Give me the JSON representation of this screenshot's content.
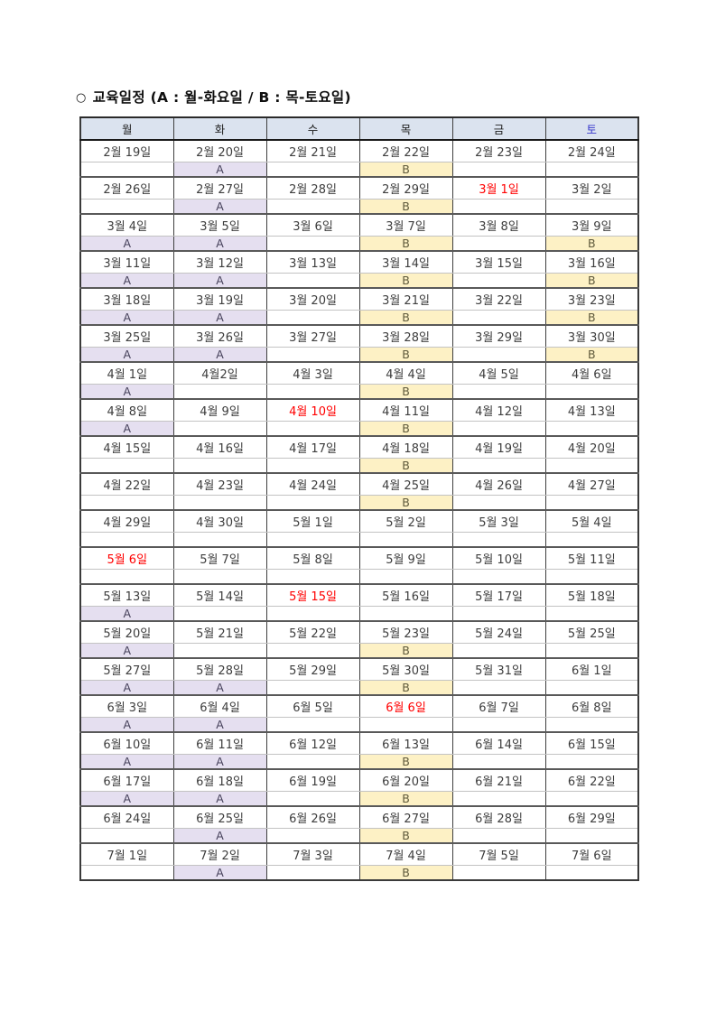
{
  "title": {
    "bullet": "○",
    "text": "교육일정 (A : 월-화요일 / B : 목-토요일)"
  },
  "legend": {
    "a_meaning": "월-화요일",
    "b_meaning": "목-토요일"
  },
  "colors": {
    "header_bg": "#dbe3ef",
    "header_fg": "#1f1f1f",
    "saturday_blue": "#3a3acc",
    "marker_a_bg": "#e5dff0",
    "marker_b_bg": "#fdf1c5",
    "holiday_red": "#ff0000",
    "border_dark": "#3a3a3a",
    "group_separator": "#595959"
  },
  "table": {
    "headers": [
      "월",
      "화",
      "수",
      "목",
      "금",
      "토"
    ],
    "saturday_index": 5,
    "weeks": [
      {
        "dates": [
          "2월 19일",
          "2월 20일",
          "2월 21일",
          "2월 22일",
          "2월 23일",
          "2월 24일"
        ],
        "markers": [
          "",
          "A",
          "",
          "B",
          "",
          ""
        ],
        "red": []
      },
      {
        "dates": [
          "2월 26일",
          "2월 27일",
          "2월 28일",
          "2월 29일",
          "3월 1일",
          "3월 2일"
        ],
        "markers": [
          "",
          "A",
          "",
          "B",
          "",
          ""
        ],
        "red": [
          4
        ]
      },
      {
        "dates": [
          "3월 4일",
          "3월 5일",
          "3월 6일",
          "3월 7일",
          "3월 8일",
          "3월 9일"
        ],
        "markers": [
          "A",
          "A",
          "",
          "B",
          "",
          "B"
        ],
        "red": []
      },
      {
        "dates": [
          "3월 11일",
          "3월 12일",
          "3월 13일",
          "3월 14일",
          "3월 15일",
          "3월 16일"
        ],
        "markers": [
          "A",
          "A",
          "",
          "B",
          "",
          "B"
        ],
        "red": []
      },
      {
        "dates": [
          "3월 18일",
          "3월 19일",
          "3월 20일",
          "3월 21일",
          "3월 22일",
          "3월 23일"
        ],
        "markers": [
          "A",
          "A",
          "",
          "B",
          "",
          "B"
        ],
        "red": []
      },
      {
        "dates": [
          "3월 25일",
          "3월 26일",
          "3월 27일",
          "3월 28일",
          "3월 29일",
          "3월 30일"
        ],
        "markers": [
          "A",
          "A",
          "",
          "B",
          "",
          "B"
        ],
        "red": []
      },
      {
        "dates": [
          "4월 1일",
          "4월2일",
          "4월 3일",
          "4월 4일",
          "4월 5일",
          "4월 6일"
        ],
        "markers": [
          "A",
          "",
          "",
          "B",
          "",
          ""
        ],
        "red": []
      },
      {
        "dates": [
          "4월 8일",
          "4월 9일",
          "4월 10일",
          "4월 11일",
          "4월 12일",
          "4월 13일"
        ],
        "markers": [
          "A",
          "",
          "",
          "B",
          "",
          ""
        ],
        "red": [
          2
        ]
      },
      {
        "dates": [
          "4월 15일",
          "4월 16일",
          "4월 17일",
          "4월 18일",
          "4월 19일",
          "4월 20일"
        ],
        "markers": [
          "",
          "",
          "",
          "B",
          "",
          ""
        ],
        "red": []
      },
      {
        "dates": [
          "4월 22일",
          "4월 23일",
          "4월 24일",
          "4월 25일",
          "4월 26일",
          "4월 27일"
        ],
        "markers": [
          "",
          "",
          "",
          "B",
          "",
          ""
        ],
        "red": []
      },
      {
        "dates": [
          "4월 29일",
          "4월 30일",
          "5월 1일",
          "5월 2일",
          "5월 3일",
          "5월 4일"
        ],
        "markers": [
          "",
          "",
          "",
          "",
          "",
          ""
        ],
        "red": []
      },
      {
        "dates": [
          "5월 6일",
          "5월 7일",
          "5월 8일",
          "5월 9일",
          "5월 10일",
          "5월 11일"
        ],
        "markers": [
          "",
          "",
          "",
          "",
          "",
          ""
        ],
        "red": [
          0
        ]
      },
      {
        "dates": [
          "5월 13일",
          "5월 14일",
          "5월 15일",
          "5월 16일",
          "5월 17일",
          "5월 18일"
        ],
        "markers": [
          "A",
          "",
          "",
          "",
          "",
          ""
        ],
        "red": [
          2
        ]
      },
      {
        "dates": [
          "5월 20일",
          "5월 21일",
          "5월 22일",
          "5월 23일",
          "5월 24일",
          "5월 25일"
        ],
        "markers": [
          "A",
          "",
          "",
          "B",
          "",
          ""
        ],
        "red": []
      },
      {
        "dates": [
          "5월 27일",
          "5월 28일",
          "5월 29일",
          "5월 30일",
          "5월 31일",
          "6월 1일"
        ],
        "markers": [
          "A",
          "A",
          "",
          "B",
          "",
          ""
        ],
        "red": []
      },
      {
        "dates": [
          "6월 3일",
          "6월 4일",
          "6월 5일",
          "6월 6일",
          "6월 7일",
          "6월 8일"
        ],
        "markers": [
          "A",
          "A",
          "",
          "",
          "",
          ""
        ],
        "red": [
          3
        ]
      },
      {
        "dates": [
          "6월 10일",
          "6월 11일",
          "6월 12일",
          "6월 13일",
          "6월 14일",
          "6월 15일"
        ],
        "markers": [
          "A",
          "A",
          "",
          "B",
          "",
          ""
        ],
        "red": []
      },
      {
        "dates": [
          "6월 17일",
          "6월 18일",
          "6월 19일",
          "6월 20일",
          "6월 21일",
          "6월 22일"
        ],
        "markers": [
          "A",
          "A",
          "",
          "B",
          "",
          ""
        ],
        "red": []
      },
      {
        "dates": [
          "6월 24일",
          "6월 25일",
          "6월 26일",
          "6월 27일",
          "6월 28일",
          "6월 29일"
        ],
        "markers": [
          "",
          "A",
          "",
          "B",
          "",
          ""
        ],
        "red": []
      },
      {
        "dates": [
          "7월 1일",
          "7월 2일",
          "7월 3일",
          "7월 4일",
          "7월 5일",
          "7월 6일"
        ],
        "markers": [
          "",
          "A",
          "",
          "B",
          "",
          ""
        ],
        "red": []
      }
    ]
  }
}
